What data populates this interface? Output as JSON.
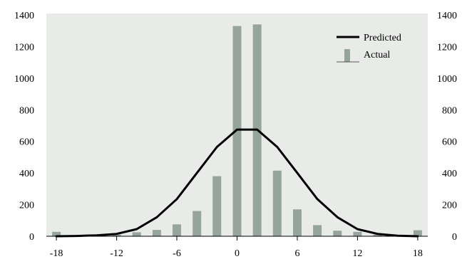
{
  "colors": {
    "background": "#e9ebe9",
    "bar": "#95a59c",
    "line": "#000000"
  },
  "chart_data": {
    "type": "bar",
    "title": "",
    "xlabel": "",
    "ylabel": "",
    "xlim": [
      -19,
      19
    ],
    "ylim": [
      0,
      1400
    ],
    "x_ticks": [
      -18,
      -12,
      -6,
      0,
      6,
      12,
      18
    ],
    "y_ticks": [
      0,
      200,
      400,
      600,
      800,
      1000,
      1200,
      1400
    ],
    "grid": false,
    "legend_position": "top-right",
    "series": [
      {
        "name": "Actual",
        "type": "bar",
        "x": [
          -18,
          -16,
          -14,
          -12,
          -10,
          -8,
          -6,
          -4,
          -2,
          0,
          2,
          4,
          6,
          8,
          10,
          12,
          14,
          16,
          18
        ],
        "values": [
          28,
          0,
          5,
          10,
          25,
          40,
          75,
          160,
          380,
          1330,
          1340,
          415,
          170,
          70,
          35,
          28,
          10,
          5,
          38
        ]
      },
      {
        "name": "Predicted",
        "type": "line",
        "x": [
          -18,
          -16,
          -14,
          -12,
          -10,
          -8,
          -6,
          -4,
          -2,
          0,
          2,
          4,
          6,
          8,
          10,
          12,
          14,
          16,
          18
        ],
        "values": [
          0,
          2,
          6,
          15,
          45,
          120,
          235,
          400,
          565,
          675,
          675,
          565,
          400,
          235,
          120,
          45,
          15,
          3,
          0
        ]
      }
    ]
  }
}
